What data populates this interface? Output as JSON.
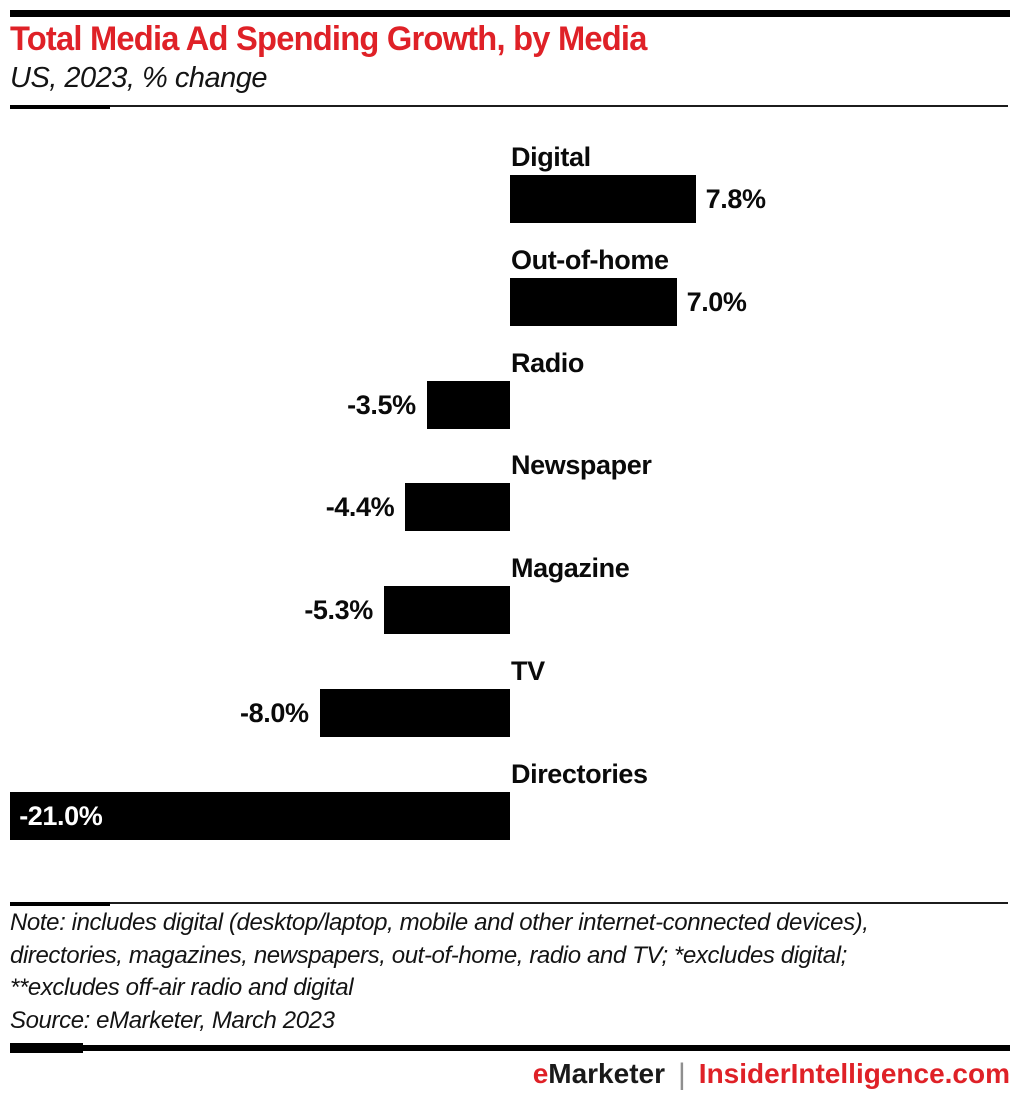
{
  "chart_data": {
    "type": "bar",
    "orientation": "horizontal",
    "title": "Total Media Ad Spending Growth, by Media",
    "subtitle": "US, 2023, % change",
    "categories": [
      "Digital",
      "Out-of-home",
      "Radio",
      "Newspaper",
      "Magazine",
      "TV",
      "Directories"
    ],
    "values": [
      7.8,
      7.0,
      -3.5,
      -4.4,
      -5.3,
      -8.0,
      -21.0
    ],
    "value_labels": [
      "7.8%",
      "7.0%",
      "-3.5%",
      "-4.4%",
      "-5.3%",
      "-8.0%",
      "-21.0%"
    ],
    "value_label_inside": [
      false,
      false,
      false,
      false,
      false,
      false,
      true
    ],
    "unit": "% change",
    "xlim": [
      -21.5,
      8.5
    ],
    "grid": false,
    "legend": "none",
    "bar_color": "#000000"
  },
  "notes": {
    "lines": [
      "Note: includes digital (desktop/laptop, mobile and other internet-connected devices),",
      "directories, magazines, newspapers, out-of-home, radio and TV; *excludes digital;",
      "**excludes off-air radio and digital"
    ],
    "source": "Source: eMarketer, March 2023"
  },
  "footer": {
    "emarketer_accent": "e",
    "emarketer_rest": "Marketer",
    "separator": "|",
    "insider": "InsiderIntelligence.com"
  },
  "colors": {
    "accent_red": "#df2127",
    "bar_black": "#000000",
    "inside_label_white": "#ffffff",
    "separator_gray": "#8f8f8f"
  }
}
